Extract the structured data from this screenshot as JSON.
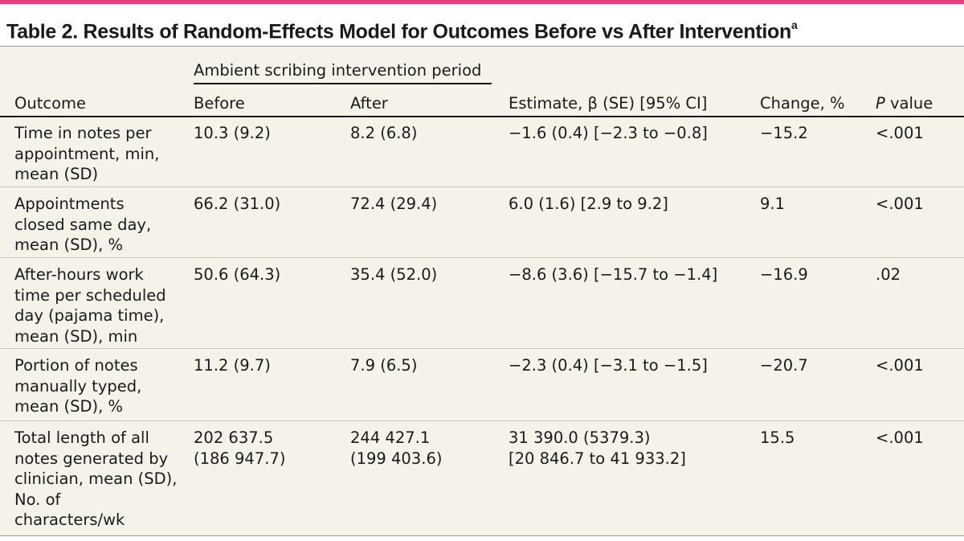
{
  "title": {
    "text": "Table 2. Results of Random-Effects Model for Outcomes Before vs After Intervention",
    "footnote_mark": "a"
  },
  "header": {
    "group_label": "Ambient scribing intervention period",
    "outcome": "Outcome",
    "before": "Before",
    "after": "After",
    "estimate": "Estimate, β (SE) [95% CI]",
    "change": "Change, %",
    "p_italic": "P",
    "p_rest": " value"
  },
  "rows": [
    {
      "outcome": [
        "Time in notes per",
        "appointment, min,",
        "mean (SD)"
      ],
      "before": [
        "10.3 (9.2)"
      ],
      "after": [
        "8.2 (6.8)"
      ],
      "estimate": [
        "−1.6 (0.4) [−2.3 to −0.8]"
      ],
      "change": "−15.2",
      "p": "<.001"
    },
    {
      "outcome": [
        "Appointments",
        "closed same day,",
        "mean (SD), %"
      ],
      "before": [
        "66.2 (31.0)"
      ],
      "after": [
        "72.4 (29.4)"
      ],
      "estimate": [
        "6.0 (1.6) [2.9 to 9.2]"
      ],
      "change": "9.1",
      "p": "<.001"
    },
    {
      "outcome": [
        "After-hours work",
        "time per scheduled",
        "day (pajama time),",
        "mean (SD), min"
      ],
      "before": [
        "50.6 (64.3)"
      ],
      "after": [
        "35.4 (52.0)"
      ],
      "estimate": [
        "−8.6 (3.6) [−15.7 to −1.4]"
      ],
      "change": "−16.9",
      "p": ".02"
    },
    {
      "outcome": [
        "Portion of notes",
        "manually typed,",
        "mean (SD), %"
      ],
      "before": [
        "11.2 (9.7)"
      ],
      "after": [
        "7.9 (6.5)"
      ],
      "estimate": [
        "−2.3 (0.4) [−3.1 to −1.5]"
      ],
      "change": "−20.7",
      "p": "<.001"
    },
    {
      "outcome": [
        "Total length of all",
        "notes generated by",
        "clinician, mean (SD),",
        "No. of",
        "characters/wk"
      ],
      "before": [
        "202 637.5",
        "(186 947.7)"
      ],
      "after": [
        "244 427.1",
        "(199 403.6)"
      ],
      "estimate": [
        "31 390.0 (5379.3)",
        "[20 846.7 to 41 933.2]"
      ],
      "change": "15.5",
      "p": "<.001"
    }
  ]
}
